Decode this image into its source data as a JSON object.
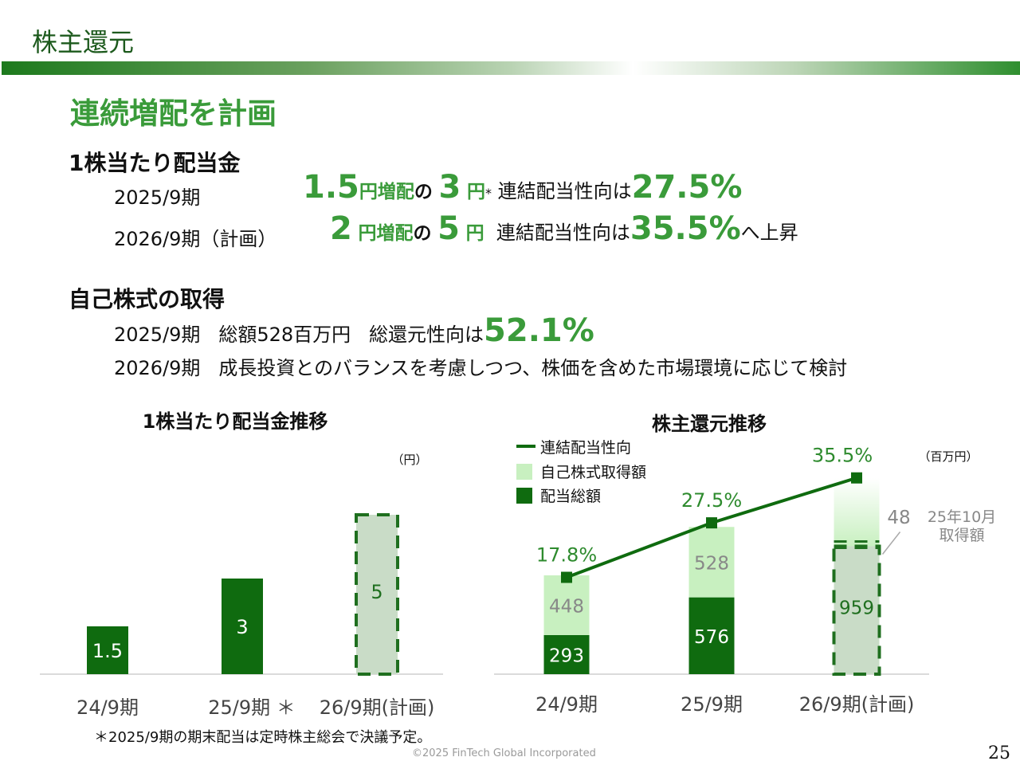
{
  "header": {
    "title": "株主還元",
    "headline": "連続増配を計画"
  },
  "dividend_section": {
    "heading": "1株当たり配当金",
    "row1": {
      "period": "2025/9期",
      "increase_value": "1.5",
      "unit1": "円増配",
      "particle": "の",
      "dividend_value": "3",
      "unit2": "円",
      "asterisk": "*",
      "payout_text": "連結配当性向は",
      "payout_value": "27.5%"
    },
    "row2": {
      "period": "2026/9期（計画）",
      "increase_value": "2",
      "unit1": "円増配",
      "particle": "の",
      "dividend_value": "5",
      "unit2": "円",
      "payout_text": "連結配当性向は",
      "payout_value": "35.5%",
      "suffix": "へ上昇"
    }
  },
  "buyback_section": {
    "heading": "自己株式の取得",
    "row1": {
      "period": "2025/9期",
      "total": "総額528百万円",
      "ratio_text": "総還元性向は",
      "ratio_value": "52.1%"
    },
    "row2": {
      "period": "2026/9期",
      "text": "成長投資とのバランスを考慮しつつ、株価を含めた市場環境に応じて検討"
    }
  },
  "footnote": "＊2025/9期の期末配当は定時株主総会で決議予定。",
  "copyright": "©2025 FinTech Global Incorporated",
  "page_number": "25",
  "colors": {
    "dark_green": "#0f6b0f",
    "light_green": "#c8f0c0",
    "accent_green": "#3a9b3a",
    "dashed_fill": "#c9dcc7",
    "axis": "#cfcfcf"
  },
  "chart_data": [
    {
      "type": "bar",
      "title": "1株当たり配当金推移",
      "unit_label": "（円）",
      "categories": [
        "24/9期",
        "25/9期 ＊",
        "26/9期(計画)"
      ],
      "values": [
        1.5,
        3,
        5
      ],
      "value_labels": [
        "1.5",
        "3",
        "5"
      ],
      "planned_index": 2,
      "ylim": [
        0,
        5.5
      ]
    },
    {
      "type": "bar",
      "title": "株主還元推移",
      "unit_label": "（百万円）",
      "categories": [
        "24/9期",
        "25/9期",
        "26/9期(計画)"
      ],
      "stacked": true,
      "legend": [
        "連結配当性向",
        "自己株式取得額",
        "配当総額"
      ],
      "series": [
        {
          "name": "配当総額",
          "values": [
            293,
            576,
            959
          ]
        },
        {
          "name": "自己株式取得額",
          "values": [
            448,
            528,
            48
          ]
        }
      ],
      "line_series": {
        "name": "連結配当性向",
        "values": [
          17.8,
          27.5,
          35.5
        ],
        "labels": [
          "17.8%",
          "27.5%",
          "35.5%"
        ]
      },
      "annotation": {
        "value": "48",
        "text_line1": "25年10月",
        "text_line2": "取得額"
      },
      "planned_index": 2,
      "ylim": [
        0,
        1100
      ]
    }
  ]
}
